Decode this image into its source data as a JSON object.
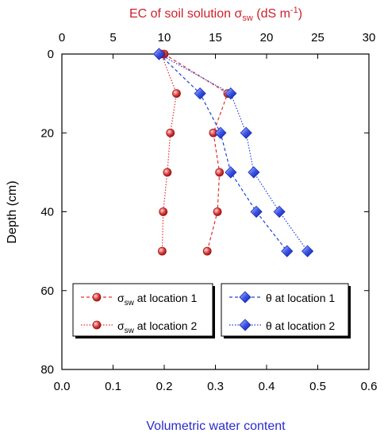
{
  "chart_data": {
    "type": "line",
    "top_axis": {
      "title_main": "EC of soil solution ",
      "title_symbol": "σ",
      "title_subscript": "sw",
      "title_unit_open": " (dS m",
      "title_unit_sup": "-1",
      "title_unit_close": ")",
      "range": [
        0,
        30
      ],
      "ticks": [
        "0",
        "5",
        "10",
        "15",
        "20",
        "25",
        "30"
      ],
      "color": "#d0202a"
    },
    "bottom_axis": {
      "title": "Volumetric water content",
      "range": [
        0.0,
        0.6
      ],
      "ticks": [
        "0.0",
        "0.1",
        "0.2",
        "0.3",
        "0.4",
        "0.5",
        "0.6"
      ],
      "color": "#2a2ad0"
    },
    "y_axis": {
      "title": "Depth (cm)",
      "range": [
        0,
        80
      ],
      "inverted": true,
      "ticks": [
        "0",
        "20",
        "40",
        "60",
        "80"
      ]
    },
    "grid": false,
    "legend_placement": "bottom",
    "series": [
      {
        "name_symbol": "σ",
        "name_subscript": "sw",
        "name_rest": " at location 1",
        "axis": "top",
        "marker": "circle",
        "line": "dashed",
        "color": "#e03030",
        "points": [
          [
            10,
            0
          ],
          [
            16.2,
            10
          ],
          [
            14.8,
            20
          ],
          [
            15.4,
            30
          ],
          [
            15.2,
            40
          ],
          [
            14.2,
            50
          ]
        ]
      },
      {
        "name_symbol": "σ",
        "name_subscript": "sw",
        "name_rest": " at location 2",
        "axis": "top",
        "marker": "circle",
        "line": "dotted",
        "color": "#e03030",
        "points": [
          [
            9.7,
            0
          ],
          [
            11.2,
            10
          ],
          [
            10.6,
            20
          ],
          [
            10.3,
            30
          ],
          [
            9.9,
            40
          ],
          [
            9.8,
            50
          ]
        ]
      },
      {
        "name_symbol": "θ",
        "name_subscript": "",
        "name_rest": " at location 1",
        "axis": "bottom",
        "marker": "diamond",
        "line": "dashed",
        "color": "#2040e0",
        "points": [
          [
            0.19,
            0
          ],
          [
            0.27,
            10
          ],
          [
            0.31,
            20
          ],
          [
            0.33,
            30
          ],
          [
            0.38,
            40
          ],
          [
            0.44,
            50
          ]
        ]
      },
      {
        "name_symbol": "θ",
        "name_subscript": "",
        "name_rest": " at location 2",
        "axis": "bottom",
        "marker": "diamond",
        "line": "dotted",
        "color": "#2040e0",
        "points": [
          [
            0.19,
            0
          ],
          [
            0.33,
            10
          ],
          [
            0.36,
            20
          ],
          [
            0.375,
            30
          ],
          [
            0.425,
            40
          ],
          [
            0.48,
            50
          ]
        ]
      }
    ]
  }
}
